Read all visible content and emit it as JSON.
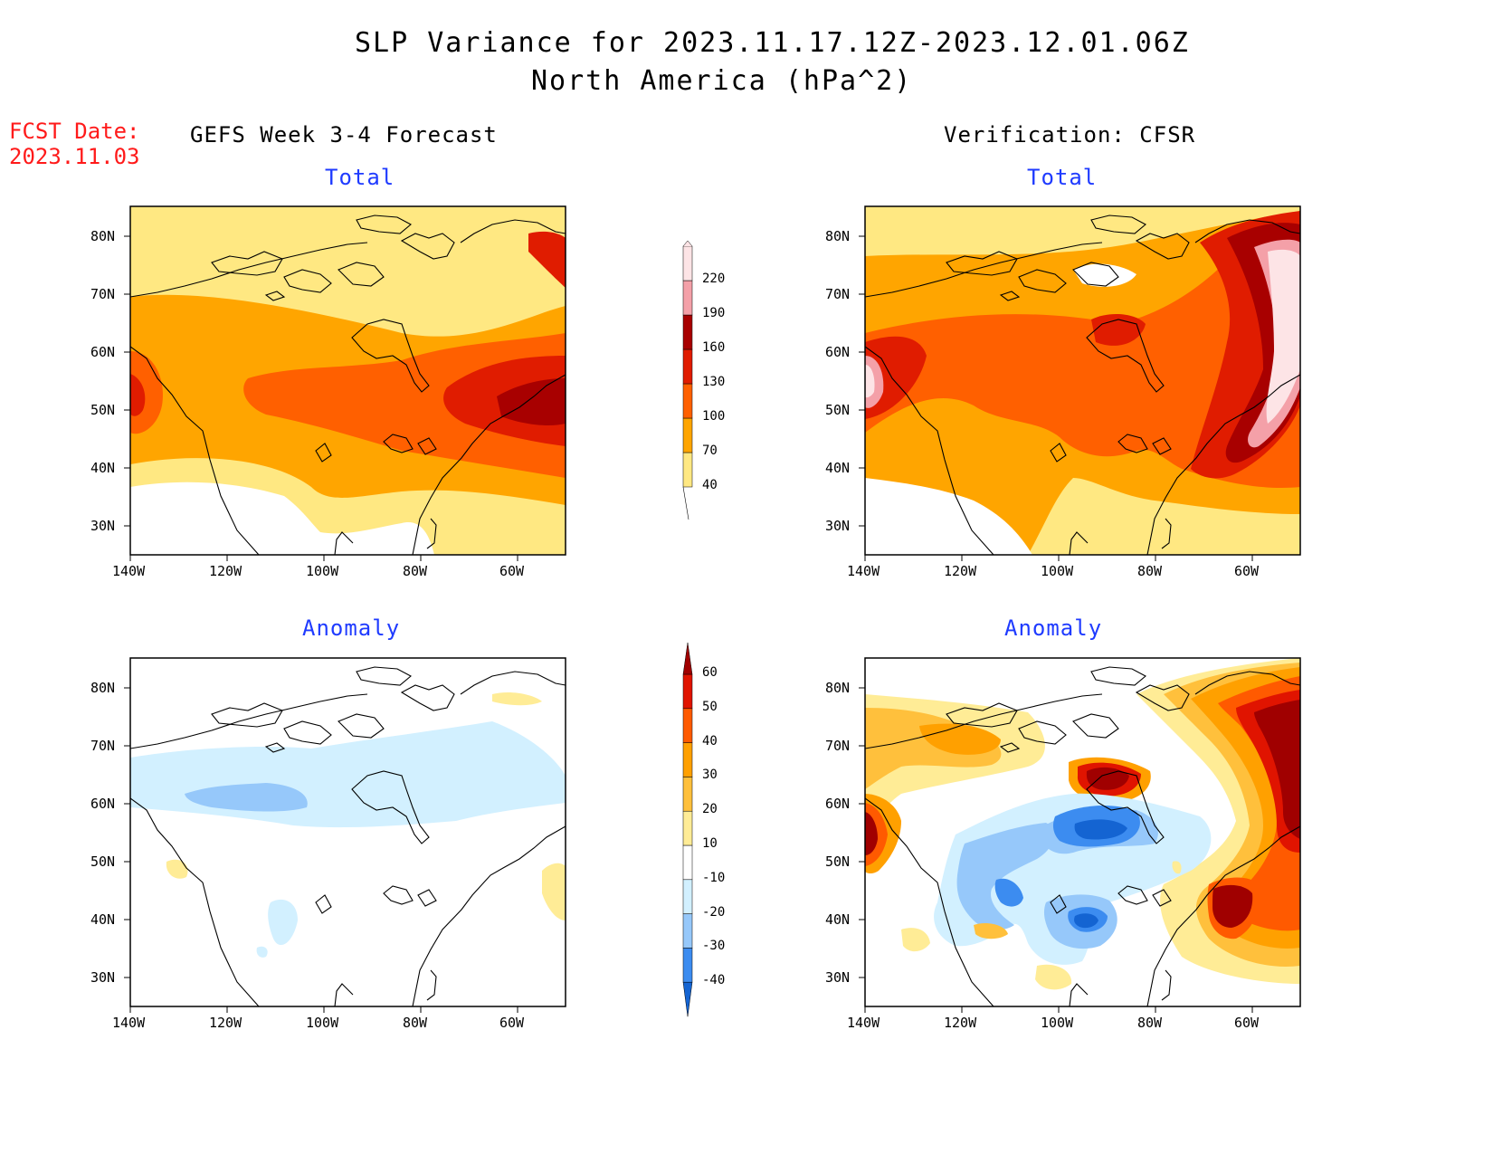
{
  "header": {
    "title_line1": "SLP Variance for 2023.11.17.12Z-2023.12.01.06Z",
    "title_line2": "North America (hPa^2)",
    "fcst_label": "FCST Date:",
    "fcst_date": "2023.11.03"
  },
  "columns": {
    "left": "GEFS Week 3-4 Forecast",
    "right": "Verification: CFSR"
  },
  "panels": {
    "tl": {
      "subtitle": "Total"
    },
    "tr": {
      "subtitle": "Total"
    },
    "bl": {
      "subtitle": "Anomaly"
    },
    "br": {
      "subtitle": "Anomaly"
    }
  },
  "axes": {
    "lat_labels": [
      "80N",
      "70N",
      "60N",
      "50N",
      "40N",
      "30N"
    ],
    "lon_labels": [
      "140W",
      "120W",
      "100W",
      "80W",
      "60W"
    ]
  },
  "colorbars": {
    "total": {
      "labels": [
        "40",
        "70",
        "100",
        "130",
        "160",
        "190",
        "220"
      ],
      "colors": [
        "#ffe882",
        "#ffa500",
        "#ff6000",
        "#e01c00",
        "#a80000",
        "#f4a0a8",
        "#fde4e6"
      ]
    },
    "anomaly": {
      "labels": [
        "-40",
        "-30",
        "-20",
        "-10",
        "10",
        "20",
        "30",
        "40",
        "50",
        "60"
      ],
      "colors": [
        "#1464d2",
        "#3c8cf0",
        "#96c8fa",
        "#d2f0ff",
        "#ffffff",
        "#ffec96",
        "#ffc03c",
        "#ffa000",
        "#ff5a00",
        "#e01400",
        "#a00000"
      ]
    }
  },
  "map_colors": {
    "white": "#ffffff",
    "coast": "#000000"
  }
}
